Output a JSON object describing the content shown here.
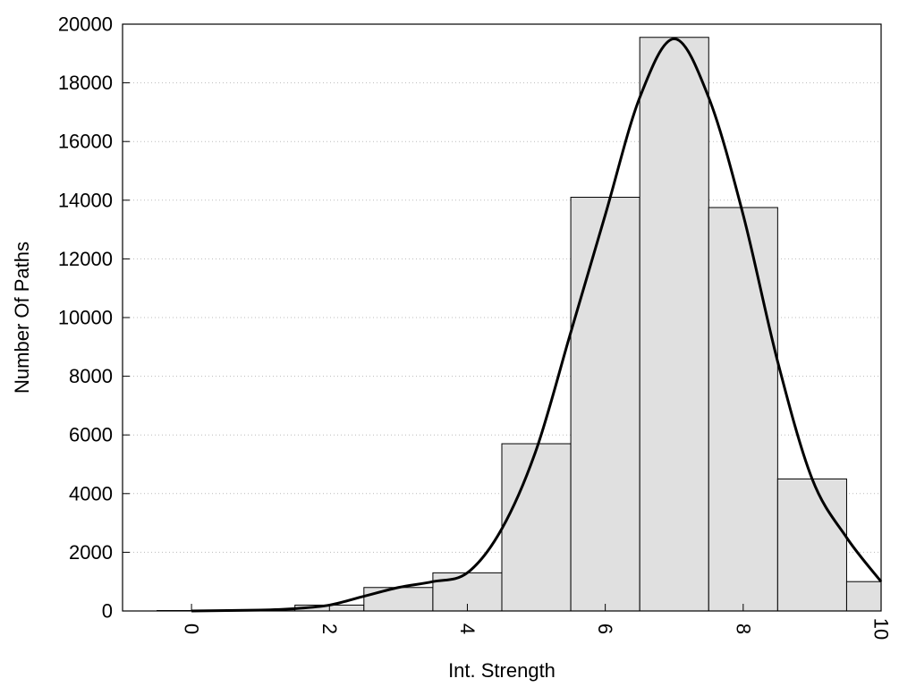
{
  "chart_data": {
    "type": "bar",
    "title": "",
    "xlabel": "Int. Strength",
    "ylabel": "Number Of Paths",
    "xlim": [
      -1,
      10
    ],
    "ylim": [
      0,
      20000
    ],
    "x_ticks": [
      "0",
      "2",
      "4",
      "6",
      "8",
      "10"
    ],
    "y_ticks": [
      "0",
      "2000",
      "4000",
      "6000",
      "8000",
      "10000",
      "12000",
      "14000",
      "16000",
      "18000",
      "20000"
    ],
    "grid": "horizontal-dotted",
    "bin_width": 1,
    "bins": [
      {
        "x": 0,
        "value": 15
      },
      {
        "x": 1,
        "value": 40
      },
      {
        "x": 2,
        "value": 200
      },
      {
        "x": 3,
        "value": 800
      },
      {
        "x": 4,
        "value": 1300
      },
      {
        "x": 5,
        "value": 5700
      },
      {
        "x": 6,
        "value": 14100
      },
      {
        "x": 7,
        "value": 19550
      },
      {
        "x": 8,
        "value": 13750
      },
      {
        "x": 9,
        "value": 4500
      },
      {
        "x": 10,
        "value": 1000
      }
    ],
    "density_curve": {
      "x": [
        0,
        1,
        1.5,
        2,
        2.5,
        3,
        3.5,
        4,
        4.5,
        5,
        5.5,
        6,
        6.5,
        7,
        7.5,
        8,
        8.5,
        9,
        9.5,
        10
      ],
      "y": [
        0,
        30,
        80,
        200,
        500,
        800,
        1000,
        1300,
        2800,
        5500,
        9500,
        13500,
        17500,
        19500,
        17500,
        13500,
        8500,
        4500,
        2500,
        1000
      ]
    },
    "colors": {
      "bar_fill": "#e0e0e0",
      "bar_stroke": "#000000",
      "curve": "#000000",
      "grid": "#bbbbbb"
    }
  }
}
